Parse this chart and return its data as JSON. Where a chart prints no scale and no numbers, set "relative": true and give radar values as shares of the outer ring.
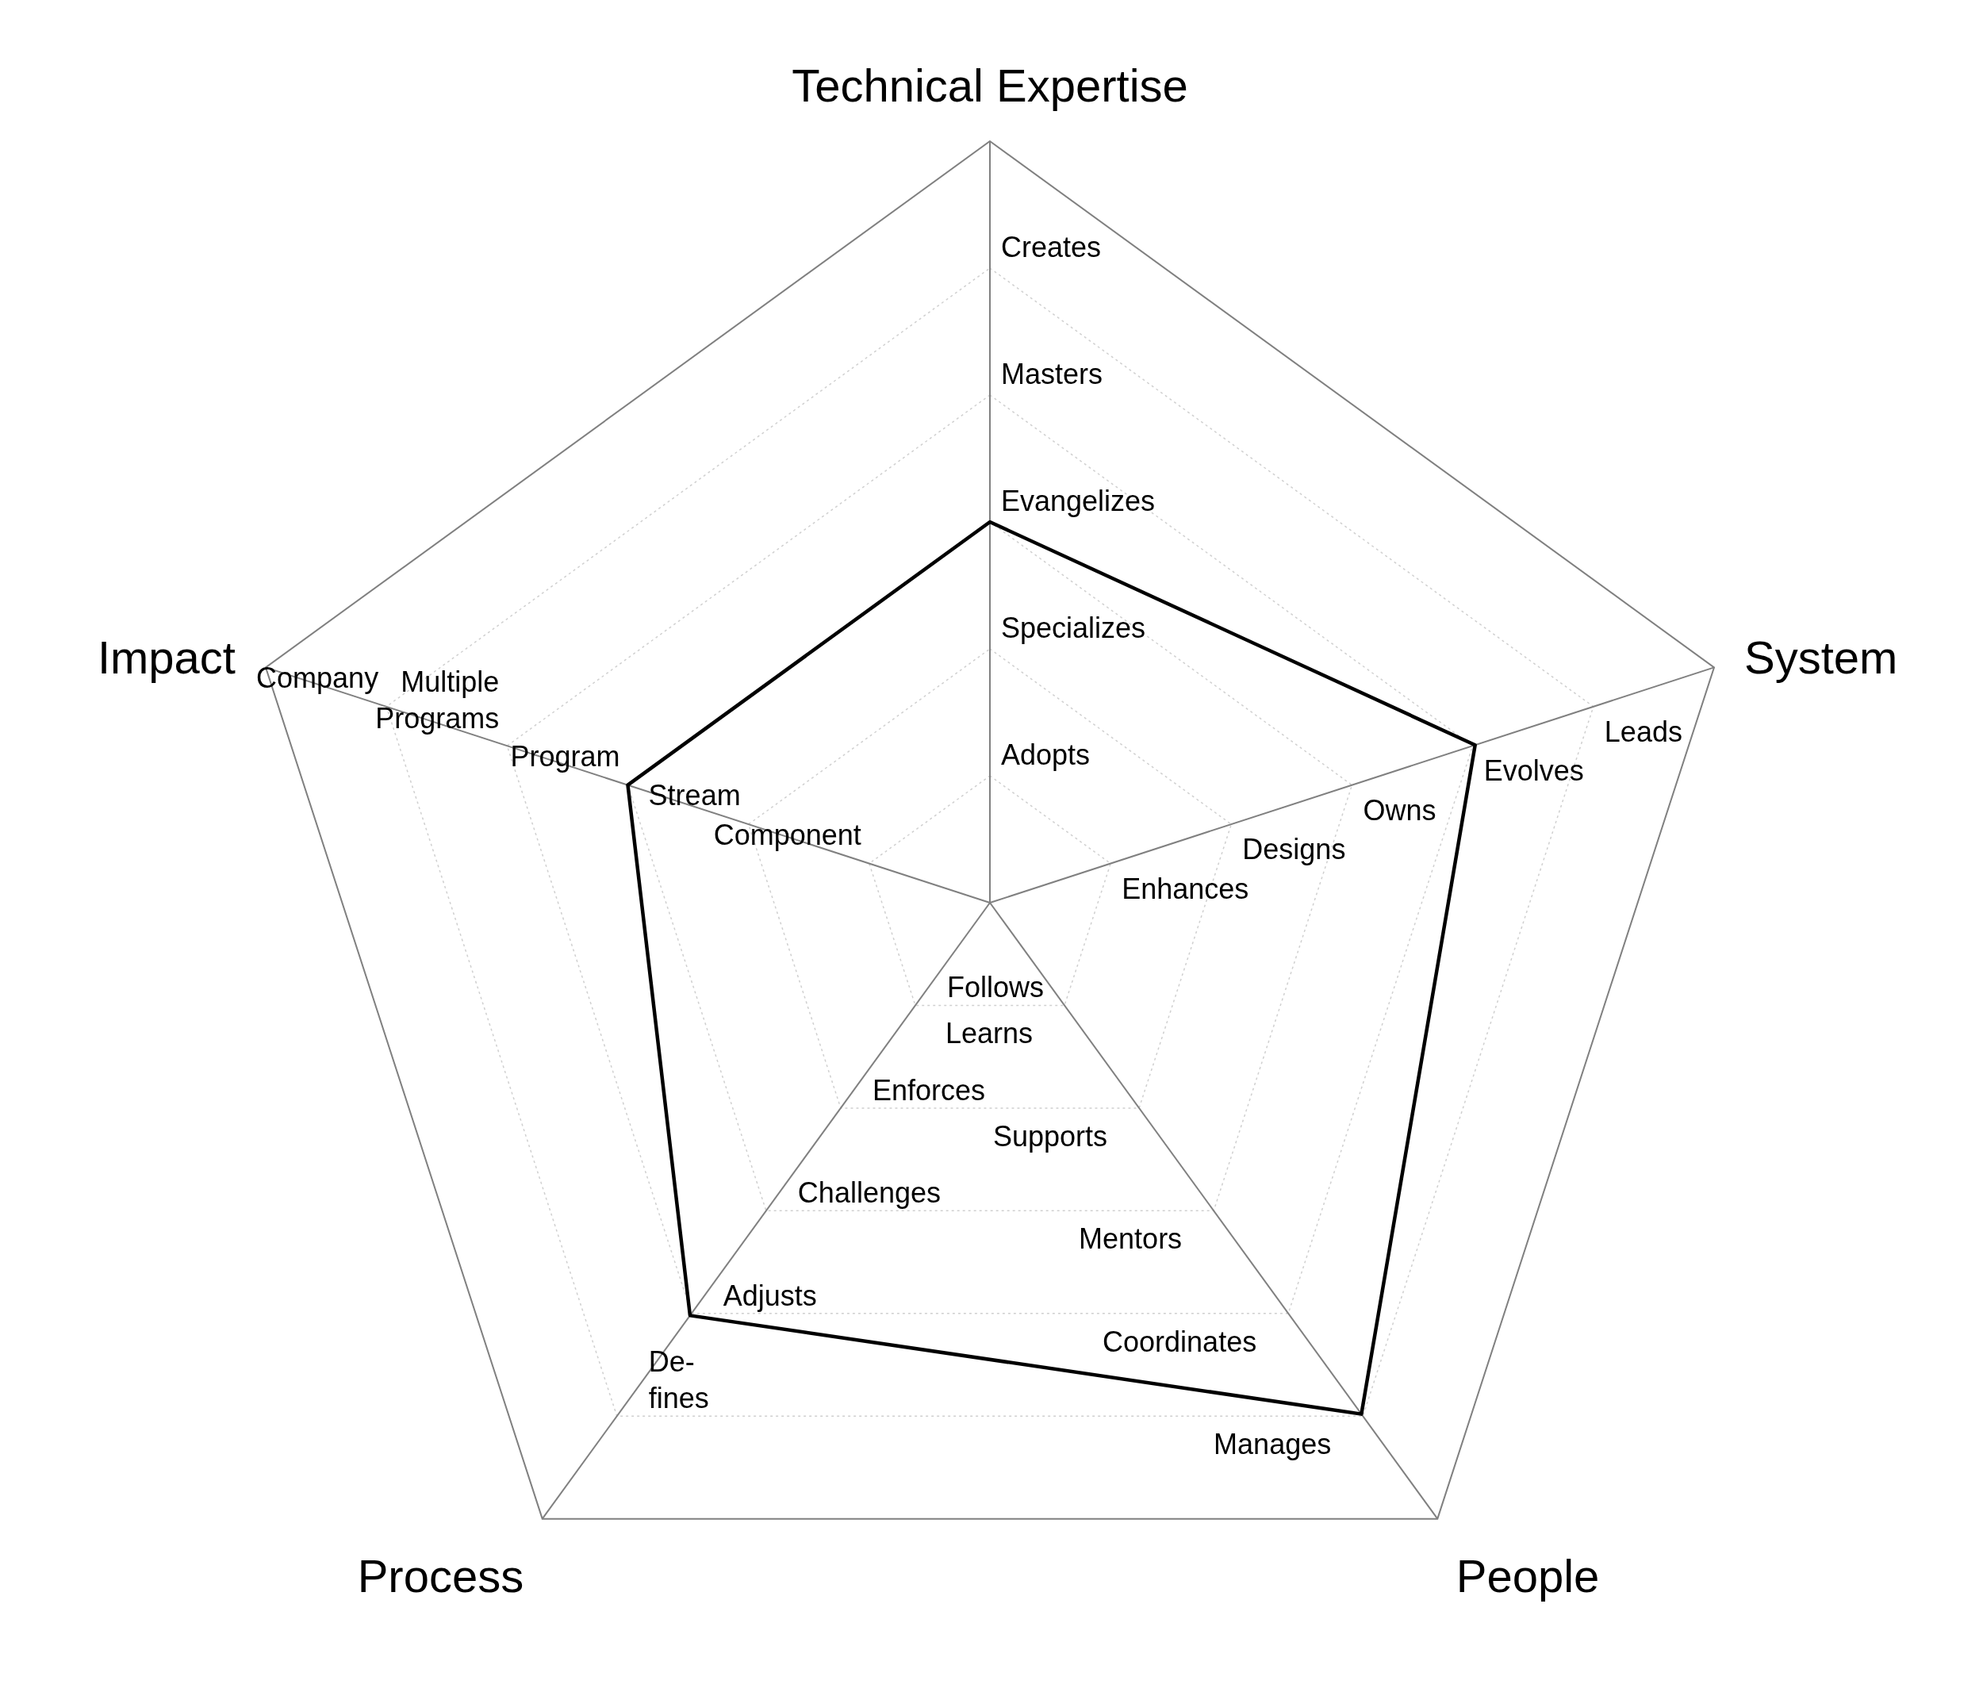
{
  "chart_data": {
    "type": "radar",
    "relative": true,
    "categories": [
      "Technical Expertise",
      "System",
      "People",
      "Process",
      "Impact"
    ],
    "series": [
      {
        "color": "#000000",
        "values": [
          0.5,
          0.67,
          0.83,
          0.67,
          0.5
        ]
      }
    ],
    "grid": true,
    "marker": "none",
    "line_style": "solid",
    "annotations": [
      "Adopts",
      "Specializes",
      "Evangelizes",
      "Masters",
      "Creates",
      "Enhances",
      "Designs",
      "Owns",
      "Evolves",
      "Leads",
      "Learns",
      "Supports",
      "Mentors",
      "Coordinates",
      "Manages",
      "Follows",
      "Enforces",
      "Challenges",
      "Adjusts",
      "De-\nfines",
      "Component",
      "Stream",
      "Program",
      "Multiple\nPrograms",
      "Company"
    ]
  }
}
